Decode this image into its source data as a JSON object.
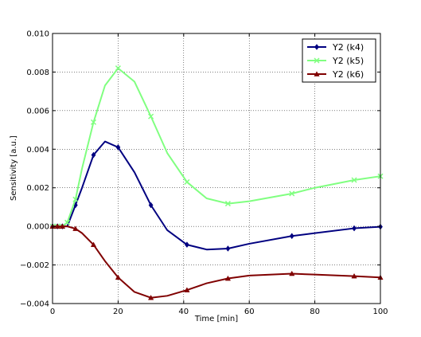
{
  "chart_data": {
    "type": "line",
    "title": "",
    "xlabel": "Time [min]",
    "ylabel": "Sensitivity [a.u.]",
    "xlim": [
      0,
      100
    ],
    "ylim": [
      -0.004,
      0.01
    ],
    "x_ticks": [
      0,
      20,
      40,
      60,
      80,
      100
    ],
    "x_tick_labels": [
      "0",
      "20",
      "40",
      "60",
      "80",
      "100"
    ],
    "y_ticks": [
      -0.004,
      -0.002,
      0.0,
      0.002,
      0.004,
      0.006,
      0.008,
      0.01
    ],
    "y_tick_labels": [
      "−0.004",
      "−0.002",
      "0.000",
      "0.002",
      "0.004",
      "0.006",
      "0.008",
      "0.010"
    ],
    "grid": true,
    "legend_position": "top-right",
    "series": [
      {
        "name": "Y2 (k4)",
        "color": "#000080",
        "marker": "diamond",
        "x": [
          0,
          1.5,
          3,
          4.5,
          7,
          9,
          12.5,
          16,
          20,
          25,
          30,
          35,
          41,
          47,
          53.5,
          60,
          73,
          80,
          92,
          100
        ],
        "y": [
          0.0,
          0.0,
          0.0,
          0.0,
          0.0011,
          0.002,
          0.0037,
          0.0044,
          0.0041,
          0.0028,
          0.0011,
          -0.0002,
          -0.00095,
          -0.0012,
          -0.00115,
          -0.0009,
          -0.0005,
          -0.00035,
          -0.0001,
          -2e-05
        ],
        "marked": [
          true,
          true,
          true,
          false,
          true,
          false,
          true,
          false,
          true,
          false,
          true,
          false,
          true,
          false,
          true,
          false,
          true,
          false,
          true,
          true
        ]
      },
      {
        "name": "Y2 (k5)",
        "color": "#80ff80",
        "marker": "x",
        "x": [
          0,
          1.5,
          3,
          4.5,
          7,
          9,
          12.5,
          16,
          20,
          25,
          30,
          35,
          41,
          47,
          53.5,
          60,
          73,
          80,
          92,
          100
        ],
        "y": [
          0.0,
          0.0,
          0.0,
          0.0002,
          0.0014,
          0.003,
          0.0054,
          0.0073,
          0.0082,
          0.0075,
          0.0057,
          0.0038,
          0.0023,
          0.00145,
          0.00118,
          0.0013,
          0.0017,
          0.002,
          0.0024,
          0.0026
        ],
        "marked": [
          true,
          true,
          true,
          true,
          true,
          false,
          true,
          false,
          true,
          false,
          true,
          false,
          true,
          false,
          true,
          false,
          true,
          false,
          true,
          true
        ]
      },
      {
        "name": "Y2 (k6)",
        "color": "#800000",
        "marker": "triangle",
        "x": [
          0,
          1.5,
          3,
          4.5,
          7,
          9,
          12.5,
          16,
          20,
          25,
          30,
          35,
          41,
          47,
          53.5,
          60,
          73,
          80,
          92,
          100
        ],
        "y": [
          0.0,
          0.0,
          0.0,
          0.0,
          -0.00012,
          -0.00035,
          -0.00095,
          -0.0018,
          -0.00265,
          -0.0034,
          -0.0037,
          -0.0036,
          -0.0033,
          -0.00295,
          -0.0027,
          -0.00255,
          -0.00245,
          -0.0025,
          -0.00258,
          -0.00265
        ],
        "marked": [
          true,
          true,
          true,
          false,
          true,
          false,
          true,
          false,
          true,
          false,
          true,
          false,
          true,
          false,
          true,
          false,
          true,
          false,
          true,
          true
        ]
      }
    ]
  }
}
